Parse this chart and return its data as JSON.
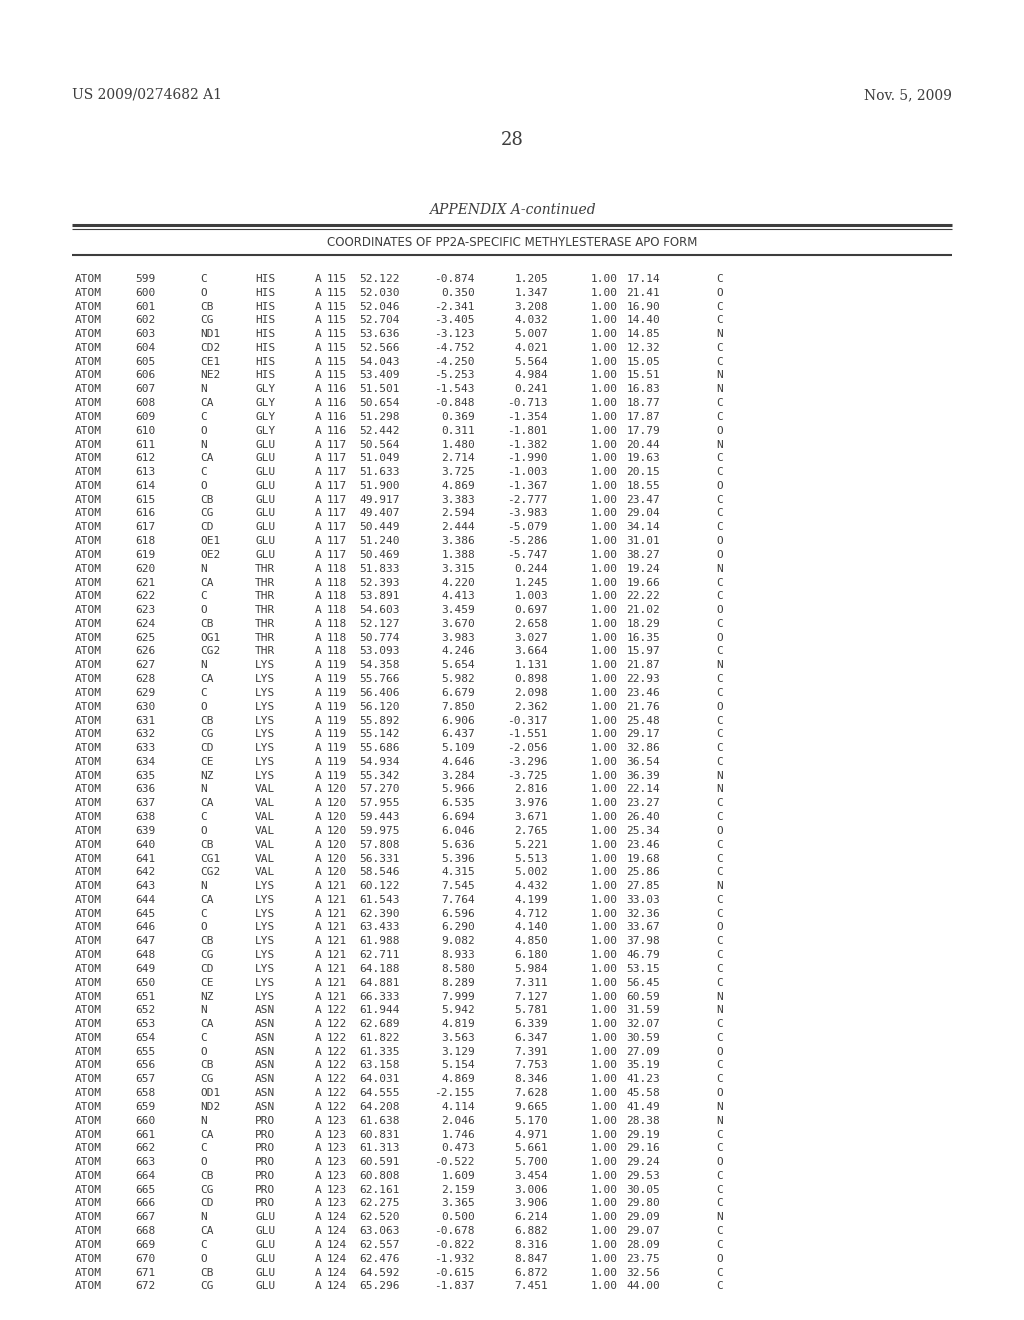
{
  "header_left": "US 2009/0274682 A1",
  "header_right": "Nov. 5, 2009",
  "page_number": "28",
  "appendix_title": "APPENDIX A-continued",
  "table_title": "COORDINATES OF PP2A-SPECIFIC METHYLESTERASE APO FORM",
  "rows": [
    [
      "ATOM",
      "599",
      "C",
      "HIS",
      "A",
      "115",
      "52.122",
      "-0.874",
      "1.205",
      "1.00",
      "17.14",
      "C"
    ],
    [
      "ATOM",
      "600",
      "O",
      "HIS",
      "A",
      "115",
      "52.030",
      "0.350",
      "1.347",
      "1.00",
      "21.41",
      "O"
    ],
    [
      "ATOM",
      "601",
      "CB",
      "HIS",
      "A",
      "115",
      "52.046",
      "-2.341",
      "3.208",
      "1.00",
      "16.90",
      "C"
    ],
    [
      "ATOM",
      "602",
      "CG",
      "HIS",
      "A",
      "115",
      "52.704",
      "-3.405",
      "4.032",
      "1.00",
      "14.40",
      "C"
    ],
    [
      "ATOM",
      "603",
      "ND1",
      "HIS",
      "A",
      "115",
      "53.636",
      "-3.123",
      "5.007",
      "1.00",
      "14.85",
      "N"
    ],
    [
      "ATOM",
      "604",
      "CD2",
      "HIS",
      "A",
      "115",
      "52.566",
      "-4.752",
      "4.021",
      "1.00",
      "12.32",
      "C"
    ],
    [
      "ATOM",
      "605",
      "CE1",
      "HIS",
      "A",
      "115",
      "54.043",
      "-4.250",
      "5.564",
      "1.00",
      "15.05",
      "C"
    ],
    [
      "ATOM",
      "606",
      "NE2",
      "HIS",
      "A",
      "115",
      "53.409",
      "-5.253",
      "4.984",
      "1.00",
      "15.51",
      "N"
    ],
    [
      "ATOM",
      "607",
      "N",
      "GLY",
      "A",
      "116",
      "51.501",
      "-1.543",
      "0.241",
      "1.00",
      "16.83",
      "N"
    ],
    [
      "ATOM",
      "608",
      "CA",
      "GLY",
      "A",
      "116",
      "50.654",
      "-0.848",
      "-0.713",
      "1.00",
      "18.77",
      "C"
    ],
    [
      "ATOM",
      "609",
      "C",
      "GLY",
      "A",
      "116",
      "51.298",
      "0.369",
      "-1.354",
      "1.00",
      "17.87",
      "C"
    ],
    [
      "ATOM",
      "610",
      "O",
      "GLY",
      "A",
      "116",
      "52.442",
      "0.311",
      "-1.801",
      "1.00",
      "17.79",
      "O"
    ],
    [
      "ATOM",
      "611",
      "N",
      "GLU",
      "A",
      "117",
      "50.564",
      "1.480",
      "-1.382",
      "1.00",
      "20.44",
      "N"
    ],
    [
      "ATOM",
      "612",
      "CA",
      "GLU",
      "A",
      "117",
      "51.049",
      "2.714",
      "-1.990",
      "1.00",
      "19.63",
      "C"
    ],
    [
      "ATOM",
      "613",
      "C",
      "GLU",
      "A",
      "117",
      "51.633",
      "3.725",
      "-1.003",
      "1.00",
      "20.15",
      "C"
    ],
    [
      "ATOM",
      "614",
      "O",
      "GLU",
      "A",
      "117",
      "51.900",
      "4.869",
      "-1.367",
      "1.00",
      "18.55",
      "O"
    ],
    [
      "ATOM",
      "615",
      "CB",
      "GLU",
      "A",
      "117",
      "49.917",
      "3.383",
      "-2.777",
      "1.00",
      "23.47",
      "C"
    ],
    [
      "ATOM",
      "616",
      "CG",
      "GLU",
      "A",
      "117",
      "49.407",
      "2.594",
      "-3.983",
      "1.00",
      "29.04",
      "C"
    ],
    [
      "ATOM",
      "617",
      "CD",
      "GLU",
      "A",
      "117",
      "50.449",
      "2.444",
      "-5.079",
      "1.00",
      "34.14",
      "C"
    ],
    [
      "ATOM",
      "618",
      "OE1",
      "GLU",
      "A",
      "117",
      "51.240",
      "3.386",
      "-5.286",
      "1.00",
      "31.01",
      "O"
    ],
    [
      "ATOM",
      "619",
      "OE2",
      "GLU",
      "A",
      "117",
      "50.469",
      "1.388",
      "-5.747",
      "1.00",
      "38.27",
      "O"
    ],
    [
      "ATOM",
      "620",
      "N",
      "THR",
      "A",
      "118",
      "51.833",
      "3.315",
      "0.244",
      "1.00",
      "19.24",
      "N"
    ],
    [
      "ATOM",
      "621",
      "CA",
      "THR",
      "A",
      "118",
      "52.393",
      "4.220",
      "1.245",
      "1.00",
      "19.66",
      "C"
    ],
    [
      "ATOM",
      "622",
      "C",
      "THR",
      "A",
      "118",
      "53.891",
      "4.413",
      "1.003",
      "1.00",
      "22.22",
      "C"
    ],
    [
      "ATOM",
      "623",
      "O",
      "THR",
      "A",
      "118",
      "54.603",
      "3.459",
      "0.697",
      "1.00",
      "21.02",
      "O"
    ],
    [
      "ATOM",
      "624",
      "CB",
      "THR",
      "A",
      "118",
      "52.127",
      "3.670",
      "2.658",
      "1.00",
      "18.29",
      "C"
    ],
    [
      "ATOM",
      "625",
      "OG1",
      "THR",
      "A",
      "118",
      "50.774",
      "3.983",
      "3.027",
      "1.00",
      "16.35",
      "O"
    ],
    [
      "ATOM",
      "626",
      "CG2",
      "THR",
      "A",
      "118",
      "53.093",
      "4.246",
      "3.664",
      "1.00",
      "15.97",
      "C"
    ],
    [
      "ATOM",
      "627",
      "N",
      "LYS",
      "A",
      "119",
      "54.358",
      "5.654",
      "1.131",
      "1.00",
      "21.87",
      "N"
    ],
    [
      "ATOM",
      "628",
      "CA",
      "LYS",
      "A",
      "119",
      "55.766",
      "5.982",
      "0.898",
      "1.00",
      "22.93",
      "C"
    ],
    [
      "ATOM",
      "629",
      "C",
      "LYS",
      "A",
      "119",
      "56.406",
      "6.679",
      "2.098",
      "1.00",
      "23.46",
      "C"
    ],
    [
      "ATOM",
      "630",
      "O",
      "LYS",
      "A",
      "119",
      "56.120",
      "7.850",
      "2.362",
      "1.00",
      "21.76",
      "O"
    ],
    [
      "ATOM",
      "631",
      "CB",
      "LYS",
      "A",
      "119",
      "55.892",
      "6.906",
      "-0.317",
      "1.00",
      "25.48",
      "C"
    ],
    [
      "ATOM",
      "632",
      "CG",
      "LYS",
      "A",
      "119",
      "55.142",
      "6.437",
      "-1.551",
      "1.00",
      "29.17",
      "C"
    ],
    [
      "ATOM",
      "633",
      "CD",
      "LYS",
      "A",
      "119",
      "55.686",
      "5.109",
      "-2.056",
      "1.00",
      "32.86",
      "C"
    ],
    [
      "ATOM",
      "634",
      "CE",
      "LYS",
      "A",
      "119",
      "54.934",
      "4.646",
      "-3.296",
      "1.00",
      "36.54",
      "C"
    ],
    [
      "ATOM",
      "635",
      "NZ",
      "LYS",
      "A",
      "119",
      "55.342",
      "3.284",
      "-3.725",
      "1.00",
      "36.39",
      "N"
    ],
    [
      "ATOM",
      "636",
      "N",
      "VAL",
      "A",
      "120",
      "57.270",
      "5.966",
      "2.816",
      "1.00",
      "22.14",
      "N"
    ],
    [
      "ATOM",
      "637",
      "CA",
      "VAL",
      "A",
      "120",
      "57.955",
      "6.535",
      "3.976",
      "1.00",
      "23.27",
      "C"
    ],
    [
      "ATOM",
      "638",
      "C",
      "VAL",
      "A",
      "120",
      "59.443",
      "6.694",
      "3.671",
      "1.00",
      "26.40",
      "C"
    ],
    [
      "ATOM",
      "639",
      "O",
      "VAL",
      "A",
      "120",
      "59.975",
      "6.046",
      "2.765",
      "1.00",
      "25.34",
      "O"
    ],
    [
      "ATOM",
      "640",
      "CB",
      "VAL",
      "A",
      "120",
      "57.808",
      "5.636",
      "5.221",
      "1.00",
      "23.46",
      "C"
    ],
    [
      "ATOM",
      "641",
      "CG1",
      "VAL",
      "A",
      "120",
      "56.331",
      "5.396",
      "5.513",
      "1.00",
      "19.68",
      "C"
    ],
    [
      "ATOM",
      "642",
      "CG2",
      "VAL",
      "A",
      "120",
      "58.546",
      "4.315",
      "5.002",
      "1.00",
      "25.86",
      "C"
    ],
    [
      "ATOM",
      "643",
      "N",
      "LYS",
      "A",
      "121",
      "60.122",
      "7.545",
      "4.432",
      "1.00",
      "27.85",
      "N"
    ],
    [
      "ATOM",
      "644",
      "CA",
      "LYS",
      "A",
      "121",
      "61.543",
      "7.764",
      "4.199",
      "1.00",
      "33.03",
      "C"
    ],
    [
      "ATOM",
      "645",
      "C",
      "LYS",
      "A",
      "121",
      "62.390",
      "6.596",
      "4.712",
      "1.00",
      "32.36",
      "C"
    ],
    [
      "ATOM",
      "646",
      "O",
      "LYS",
      "A",
      "121",
      "63.433",
      "6.290",
      "4.140",
      "1.00",
      "33.67",
      "O"
    ],
    [
      "ATOM",
      "647",
      "CB",
      "LYS",
      "A",
      "121",
      "61.988",
      "9.082",
      "4.850",
      "1.00",
      "37.98",
      "C"
    ],
    [
      "ATOM",
      "648",
      "CG",
      "LYS",
      "A",
      "121",
      "62.711",
      "8.933",
      "6.180",
      "1.00",
      "46.79",
      "C"
    ],
    [
      "ATOM",
      "649",
      "CD",
      "LYS",
      "A",
      "121",
      "64.188",
      "8.580",
      "5.984",
      "1.00",
      "53.15",
      "C"
    ],
    [
      "ATOM",
      "650",
      "CE",
      "LYS",
      "A",
      "121",
      "64.881",
      "8.289",
      "7.311",
      "1.00",
      "56.45",
      "C"
    ],
    [
      "ATOM",
      "651",
      "NZ",
      "LYS",
      "A",
      "121",
      "66.333",
      "7.999",
      "7.127",
      "1.00",
      "60.59",
      "N"
    ],
    [
      "ATOM",
      "652",
      "N",
      "ASN",
      "A",
      "122",
      "61.944",
      "5.942",
      "5.781",
      "1.00",
      "31.59",
      "N"
    ],
    [
      "ATOM",
      "653",
      "CA",
      "ASN",
      "A",
      "122",
      "62.689",
      "4.819",
      "6.339",
      "1.00",
      "32.07",
      "C"
    ],
    [
      "ATOM",
      "654",
      "C",
      "ASN",
      "A",
      "122",
      "61.822",
      "3.563",
      "6.347",
      "1.00",
      "30.59",
      "C"
    ],
    [
      "ATOM",
      "655",
      "O",
      "ASN",
      "A",
      "122",
      "61.335",
      "3.129",
      "7.391",
      "1.00",
      "27.09",
      "O"
    ],
    [
      "ATOM",
      "656",
      "CB",
      "ASN",
      "A",
      "122",
      "63.158",
      "5.154",
      "7.753",
      "1.00",
      "35.19",
      "C"
    ],
    [
      "ATOM",
      "657",
      "CG",
      "ASN",
      "A",
      "122",
      "64.031",
      "4.869",
      "8.346",
      "1.00",
      "41.23",
      "C"
    ],
    [
      "ATOM",
      "658",
      "OD1",
      "ASN",
      "A",
      "122",
      "64.555",
      "-2.155",
      "7.628",
      "1.00",
      "45.58",
      "O"
    ],
    [
      "ATOM",
      "659",
      "ND2",
      "ASN",
      "A",
      "122",
      "64.208",
      "4.114",
      "9.665",
      "1.00",
      "41.49",
      "N"
    ],
    [
      "ATOM",
      "660",
      "N",
      "PRO",
      "A",
      "123",
      "61.638",
      "2.046",
      "5.170",
      "1.00",
      "28.38",
      "N"
    ],
    [
      "ATOM",
      "661",
      "CA",
      "PRO",
      "A",
      "123",
      "60.831",
      "1.746",
      "4.971",
      "1.00",
      "29.19",
      "C"
    ],
    [
      "ATOM",
      "662",
      "C",
      "PRO",
      "A",
      "123",
      "61.313",
      "0.473",
      "5.661",
      "1.00",
      "29.16",
      "C"
    ],
    [
      "ATOM",
      "663",
      "O",
      "PRO",
      "A",
      "123",
      "60.591",
      "-0.522",
      "5.700",
      "1.00",
      "29.24",
      "O"
    ],
    [
      "ATOM",
      "664",
      "CB",
      "PRO",
      "A",
      "123",
      "60.808",
      "1.609",
      "3.454",
      "1.00",
      "29.53",
      "C"
    ],
    [
      "ATOM",
      "665",
      "CG",
      "PRO",
      "A",
      "123",
      "62.161",
      "2.159",
      "3.006",
      "1.00",
      "30.05",
      "C"
    ],
    [
      "ATOM",
      "666",
      "CD",
      "PRO",
      "A",
      "123",
      "62.275",
      "3.365",
      "3.906",
      "1.00",
      "29.80",
      "C"
    ],
    [
      "ATOM",
      "667",
      "N",
      "GLU",
      "A",
      "124",
      "62.520",
      "0.500",
      "6.214",
      "1.00",
      "29.09",
      "N"
    ],
    [
      "ATOM",
      "668",
      "CA",
      "GLU",
      "A",
      "124",
      "63.063",
      "-0.678",
      "6.882",
      "1.00",
      "29.07",
      "C"
    ],
    [
      "ATOM",
      "669",
      "C",
      "GLU",
      "A",
      "124",
      "62.557",
      "-0.822",
      "8.316",
      "1.00",
      "28.09",
      "C"
    ],
    [
      "ATOM",
      "670",
      "O",
      "GLU",
      "A",
      "124",
      "62.476",
      "-1.932",
      "8.847",
      "1.00",
      "23.75",
      "O"
    ],
    [
      "ATOM",
      "671",
      "CB",
      "GLU",
      "A",
      "124",
      "64.592",
      "-0.615",
      "6.872",
      "1.00",
      "32.56",
      "C"
    ],
    [
      "ATOM",
      "672",
      "CG",
      "GLU",
      "A",
      "124",
      "65.296",
      "-1.837",
      "7.451",
      "1.00",
      "44.00",
      "C"
    ]
  ],
  "background_color": "#ffffff",
  "text_color": "#3d3d3d"
}
